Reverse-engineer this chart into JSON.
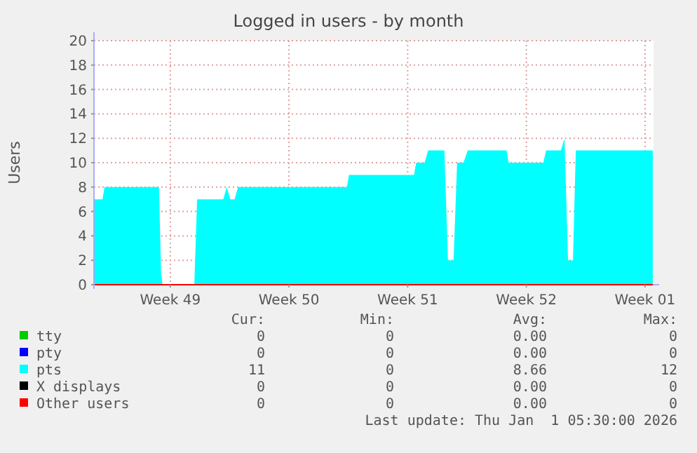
{
  "chart_data": {
    "type": "area",
    "title": "Logged in users - by month",
    "ylabel": "Users",
    "x": [
      "2025-11-29T12:00",
      "2025-11-30T00:00",
      "2025-11-30T03:00",
      "2025-12-03T08:00",
      "2025-12-03T11:00",
      "2025-12-03T13:00",
      "2025-12-05T10:00",
      "2025-12-05T14:00",
      "2025-12-07T03:00",
      "2025-12-07T08:00",
      "2025-12-07T13:00",
      "2025-12-07T19:00",
      "2025-12-08T00:00",
      "2025-12-14T10:00",
      "2025-12-14T13:00",
      "2025-12-18T09:00",
      "2025-12-18T12:00",
      "2025-12-19T00:00",
      "2025-12-19T05:00",
      "2025-12-20T04:00",
      "2025-12-20T09:00",
      "2025-12-20T17:00",
      "2025-12-20T22:00",
      "2025-12-21T07:00",
      "2025-12-21T13:00",
      "2025-12-23T20:00",
      "2025-12-23T23:00",
      "2025-12-26T00:00",
      "2025-12-26T04:00",
      "2025-12-27T01:00",
      "2025-12-27T06:00",
      "2025-12-27T11:00",
      "2025-12-27T18:00",
      "2025-12-27T22:00",
      "2026-01-01T11:00"
    ],
    "series": [
      {
        "name": "tty",
        "type": "line",
        "color": "#00cc00",
        "values": [
          null,
          null,
          null,
          null,
          null,
          null,
          null,
          null,
          null,
          null,
          null,
          null,
          null,
          null,
          null,
          null,
          null,
          null,
          null,
          null,
          null,
          null,
          null,
          null,
          null,
          null,
          null,
          null,
          null,
          null,
          null,
          null,
          null,
          null,
          null
        ]
      },
      {
        "name": "pty",
        "type": "line",
        "color": "#0000ff",
        "values": [
          null,
          null,
          null,
          null,
          null,
          null,
          null,
          null,
          null,
          null,
          null,
          null,
          null,
          null,
          null,
          null,
          null,
          null,
          null,
          null,
          null,
          null,
          null,
          null,
          null,
          null,
          null,
          null,
          null,
          null,
          null,
          null,
          null,
          null,
          null
        ]
      },
      {
        "name": "pts",
        "color": "#00ffff",
        "values": [
          7,
          7,
          8,
          8,
          1,
          0,
          0,
          7,
          7,
          8,
          7,
          7,
          8,
          8,
          9,
          9,
          10,
          10,
          11,
          11,
          2,
          2,
          10,
          10,
          11,
          11,
          10,
          10,
          11,
          11,
          12,
          2,
          2,
          11,
          11
        ]
      },
      {
        "name": "X displays",
        "type": "line",
        "color": "#000000",
        "values": [
          null,
          null,
          null,
          null,
          null,
          null,
          null,
          null,
          null,
          null,
          null,
          null,
          null,
          null,
          null,
          null,
          null,
          null,
          null,
          null,
          null,
          null,
          null,
          null,
          null,
          null,
          null,
          null,
          null,
          null,
          null,
          null,
          null,
          null,
          null
        ]
      },
      {
        "name": "Other users",
        "type": "line",
        "color": "#ff0000",
        "x": [
          "2025-11-29T12:00",
          "2026-01-01T11:00"
        ],
        "values": [
          0,
          0
        ]
      }
    ],
    "xlim": [
      "2025-11-29T12:00",
      "2026-01-01T12:00"
    ],
    "xticks": [
      {
        "value": "2025-12-04",
        "label": "Week 49"
      },
      {
        "value": "2025-12-11",
        "label": "Week 50"
      },
      {
        "value": "2025-12-18",
        "label": "Week 51"
      },
      {
        "value": "2025-12-25",
        "label": "Week 52"
      },
      {
        "value": "2026-01-01",
        "label": "Week 01"
      }
    ],
    "ylim": [
      0,
      20
    ],
    "yticks": [
      0,
      2,
      4,
      6,
      8,
      10,
      12,
      14,
      16,
      18,
      20
    ],
    "grid": true,
    "legend": "bottom",
    "annotations": [
      "Cur:",
      "Min:",
      "Avg:",
      "Max:",
      "0",
      "0",
      "0.00",
      "0",
      "0",
      "0",
      "0.00",
      "0",
      "11",
      "0",
      "8.66",
      "12",
      "0",
      "0",
      "0.00",
      "0",
      "0",
      "0",
      "0.00",
      "0",
      "Last update: Thu Jan  1 05:30:00 2026"
    ]
  }
}
